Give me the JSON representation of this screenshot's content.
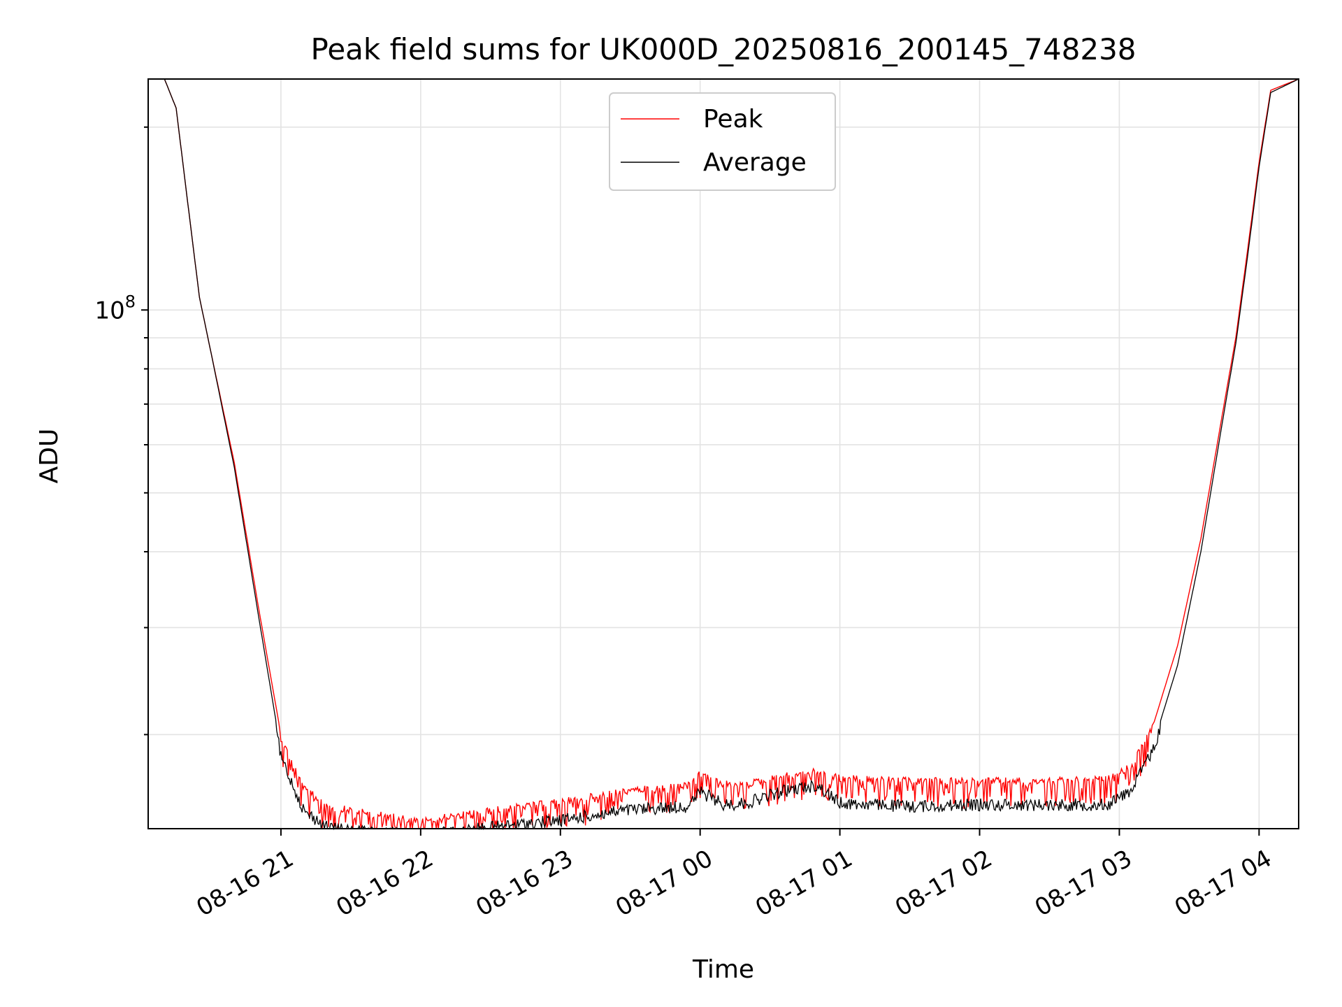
{
  "chart_data": {
    "type": "line",
    "title": "Peak field sums for UK000D_20250816_200145_748238",
    "xlabel": "Time",
    "ylabel": "ADU",
    "y_scale": "log",
    "ylim": [
      14000000,
      240000000
    ],
    "y_major_tick_labels": [
      {
        "value": 100000000,
        "base": "10",
        "exp": "8"
      }
    ],
    "y_minor_ticks": [
      20000000,
      30000000,
      40000000,
      50000000,
      60000000,
      70000000,
      80000000,
      90000000,
      200000000
    ],
    "xlim": [
      "2025-08-16 20:03",
      "2025-08-17 04:17"
    ],
    "x_ticks": [
      {
        "t": "2025-08-16 21:00",
        "label": "08-16 21"
      },
      {
        "t": "2025-08-16 22:00",
        "label": "08-16 22"
      },
      {
        "t": "2025-08-16 23:00",
        "label": "08-16 23"
      },
      {
        "t": "2025-08-17 00:00",
        "label": "08-17 00"
      },
      {
        "t": "2025-08-17 01:00",
        "label": "08-17 01"
      },
      {
        "t": "2025-08-17 02:00",
        "label": "08-17 02"
      },
      {
        "t": "2025-08-17 03:00",
        "label": "08-17 03"
      },
      {
        "t": "2025-08-17 04:00",
        "label": "08-17 04"
      }
    ],
    "grid": true,
    "legend_position": "top-center",
    "series": [
      {
        "name": "Peak",
        "color": "#ff0000",
        "points": [
          [
            "2025-08-16 20:03",
            240000000
          ],
          [
            "2025-08-16 20:10",
            240000000
          ],
          [
            "2025-08-16 20:15",
            215000000
          ],
          [
            "2025-08-16 20:20",
            150000000
          ],
          [
            "2025-08-16 20:25",
            105000000
          ],
          [
            "2025-08-16 20:30",
            85000000
          ],
          [
            "2025-08-16 20:40",
            56000000
          ],
          [
            "2025-08-16 20:50",
            33000000
          ],
          [
            "2025-08-16 21:00",
            20000000
          ],
          [
            "2025-08-16 21:10",
            16500000
          ],
          [
            "2025-08-16 21:20",
            15500000
          ],
          [
            "2025-08-16 21:30",
            15200000
          ],
          [
            "2025-08-16 22:00",
            14600000
          ],
          [
            "2025-08-16 22:30",
            15200000
          ],
          [
            "2025-08-16 23:00",
            15700000
          ],
          [
            "2025-08-16 23:30",
            16400000
          ],
          [
            "2025-08-16 23:55",
            16700000
          ],
          [
            "2025-08-17 00:00",
            17500000
          ],
          [
            "2025-08-17 00:10",
            16800000
          ],
          [
            "2025-08-17 00:20",
            16800000
          ],
          [
            "2025-08-17 00:35",
            17300000
          ],
          [
            "2025-08-17 00:50",
            17600000
          ],
          [
            "2025-08-17 01:00",
            17200000
          ],
          [
            "2025-08-17 01:30",
            17000000
          ],
          [
            "2025-08-17 02:00",
            17000000
          ],
          [
            "2025-08-17 02:30",
            17000000
          ],
          [
            "2025-08-17 02:55",
            17100000
          ],
          [
            "2025-08-17 03:05",
            18000000
          ],
          [
            "2025-08-17 03:15",
            21000000
          ],
          [
            "2025-08-17 03:25",
            28000000
          ],
          [
            "2025-08-17 03:35",
            42000000
          ],
          [
            "2025-08-17 03:45",
            70000000
          ],
          [
            "2025-08-17 03:50",
            90000000
          ],
          [
            "2025-08-17 03:55",
            125000000
          ],
          [
            "2025-08-17 04:00",
            175000000
          ],
          [
            "2025-08-17 04:05",
            230000000
          ],
          [
            "2025-08-17 04:17",
            240000000
          ]
        ]
      },
      {
        "name": "Average",
        "color": "#000000",
        "points": [
          [
            "2025-08-16 20:03",
            240000000
          ],
          [
            "2025-08-16 20:10",
            240000000
          ],
          [
            "2025-08-16 20:15",
            215000000
          ],
          [
            "2025-08-16 20:20",
            150000000
          ],
          [
            "2025-08-16 20:25",
            105000000
          ],
          [
            "2025-08-16 20:30",
            85000000
          ],
          [
            "2025-08-16 20:40",
            55000000
          ],
          [
            "2025-08-16 20:50",
            32000000
          ],
          [
            "2025-08-16 21:00",
            18800000
          ],
          [
            "2025-08-16 21:10",
            15300000
          ],
          [
            "2025-08-16 21:20",
            14400000
          ],
          [
            "2025-08-16 21:30",
            14200000
          ],
          [
            "2025-08-16 22:00",
            14000000
          ],
          [
            "2025-08-16 22:30",
            14400000
          ],
          [
            "2025-08-16 23:00",
            14800000
          ],
          [
            "2025-08-16 23:30",
            15400000
          ],
          [
            "2025-08-16 23:55",
            15600000
          ],
          [
            "2025-08-17 00:00",
            16500000
          ],
          [
            "2025-08-17 00:10",
            15700000
          ],
          [
            "2025-08-17 00:20",
            15800000
          ],
          [
            "2025-08-17 00:35",
            16500000
          ],
          [
            "2025-08-17 00:50",
            16900000
          ],
          [
            "2025-08-17 01:00",
            15800000
          ],
          [
            "2025-08-17 01:30",
            15600000
          ],
          [
            "2025-08-17 02:00",
            15700000
          ],
          [
            "2025-08-17 02:30",
            15700000
          ],
          [
            "2025-08-17 02:55",
            15700000
          ],
          [
            "2025-08-17 03:05",
            16600000
          ],
          [
            "2025-08-17 03:15",
            19500000
          ],
          [
            "2025-08-17 03:25",
            26000000
          ],
          [
            "2025-08-17 03:35",
            40000000
          ],
          [
            "2025-08-17 03:45",
            68000000
          ],
          [
            "2025-08-17 03:50",
            88000000
          ],
          [
            "2025-08-17 03:55",
            122000000
          ],
          [
            "2025-08-17 04:00",
            172000000
          ],
          [
            "2025-08-17 04:05",
            228000000
          ],
          [
            "2025-08-17 04:17",
            240000000
          ]
        ]
      }
    ]
  }
}
